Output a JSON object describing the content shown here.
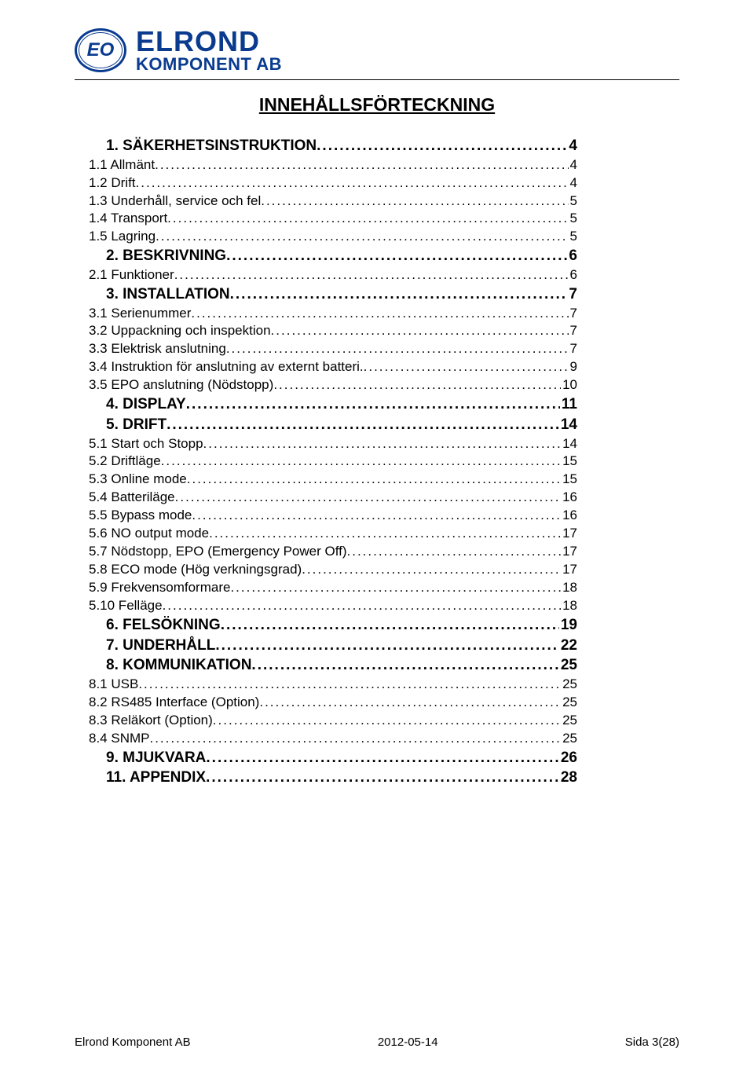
{
  "brand": {
    "logo_mono": "EO",
    "name_line1": "ELROND",
    "name_line2": "KOMPONENT AB",
    "primary_color": "#0a3b8f"
  },
  "title": "INNEHÅLLSFÖRTECKNING",
  "toc": [
    {
      "level": 0,
      "label": "1. SÄKERHETSINSTRUKTION",
      "page": "4"
    },
    {
      "level": 1,
      "label": "1.1 Allmänt",
      "page": "4"
    },
    {
      "level": 1,
      "label": "1.2 Drift",
      "page": "4"
    },
    {
      "level": 1,
      "label": "1.3 Underhåll, service och fel",
      "page": "5"
    },
    {
      "level": 1,
      "label": "1.4 Transport",
      "page": "5"
    },
    {
      "level": 1,
      "label": "1.5 Lagring",
      "page": "5"
    },
    {
      "level": 0,
      "label": "2. BESKRIVNING",
      "page": "6"
    },
    {
      "level": 1,
      "label": "2.1 Funktioner",
      "page": "6"
    },
    {
      "level": 0,
      "label": "3. INSTALLATION",
      "page": "7"
    },
    {
      "level": 1,
      "label": "3.1 Serienummer",
      "page": "7"
    },
    {
      "level": 1,
      "label": "3.2 Uppackning och inspektion",
      "page": "7"
    },
    {
      "level": 1,
      "label": "3.3 Elektrisk anslutning",
      "page": "7"
    },
    {
      "level": 1,
      "label": "3.4 Instruktion för anslutning av externt batteri.",
      "page": "9"
    },
    {
      "level": 1,
      "label": "3.5 EPO anslutning (Nödstopp)",
      "page": "10"
    },
    {
      "level": 0,
      "label": "4. DISPLAY",
      "page": "11"
    },
    {
      "level": 0,
      "label": "5. DRIFT",
      "page": "14"
    },
    {
      "level": 1,
      "label": "5.1 Start och Stopp",
      "page": "14"
    },
    {
      "level": 1,
      "label": "5.2 Driftläge",
      "page": "15"
    },
    {
      "level": 1,
      "label": "5.3 Online mode",
      "page": "15"
    },
    {
      "level": 1,
      "label": "5.4 Batteriläge",
      "page": "16"
    },
    {
      "level": 1,
      "label": "5.5 Bypass mode",
      "page": "16"
    },
    {
      "level": 1,
      "label": "5.6 NO output mode",
      "page": "17"
    },
    {
      "level": 1,
      "label": "5.7 Nödstopp, EPO (Emergency Power Off)",
      "page": "17"
    },
    {
      "level": 1,
      "label": "5.8 ECO mode (Hög verkningsgrad)",
      "page": "17"
    },
    {
      "level": 1,
      "label": "5.9 Frekvensomformare",
      "page": "18"
    },
    {
      "level": 1,
      "label": "5.10 Felläge",
      "page": "18"
    },
    {
      "level": 0,
      "label": "6. FELSÖKNING",
      "page": "19"
    },
    {
      "level": 0,
      "label": "7. UNDERHÅLL",
      "page": "22"
    },
    {
      "level": 0,
      "label": "8. KOMMUNIKATION",
      "page": "25"
    },
    {
      "level": 1,
      "label": "8.1 USB",
      "page": "25"
    },
    {
      "level": 1,
      "label": "8.2 RS485 Interface (Option)",
      "page": "25"
    },
    {
      "level": 1,
      "label": "8.3 Reläkort (Option)",
      "page": "25"
    },
    {
      "level": 1,
      "label": "8.4 SNMP",
      "page": "25"
    },
    {
      "level": 0,
      "label": "9. MJUKVARA",
      "page": "26"
    },
    {
      "level": 0,
      "label": "11. APPENDIX",
      "page": "28"
    }
  ],
  "footer": {
    "left": "Elrond Komponent AB",
    "center": "2012-05-14",
    "right": "Sida 3(28)"
  }
}
